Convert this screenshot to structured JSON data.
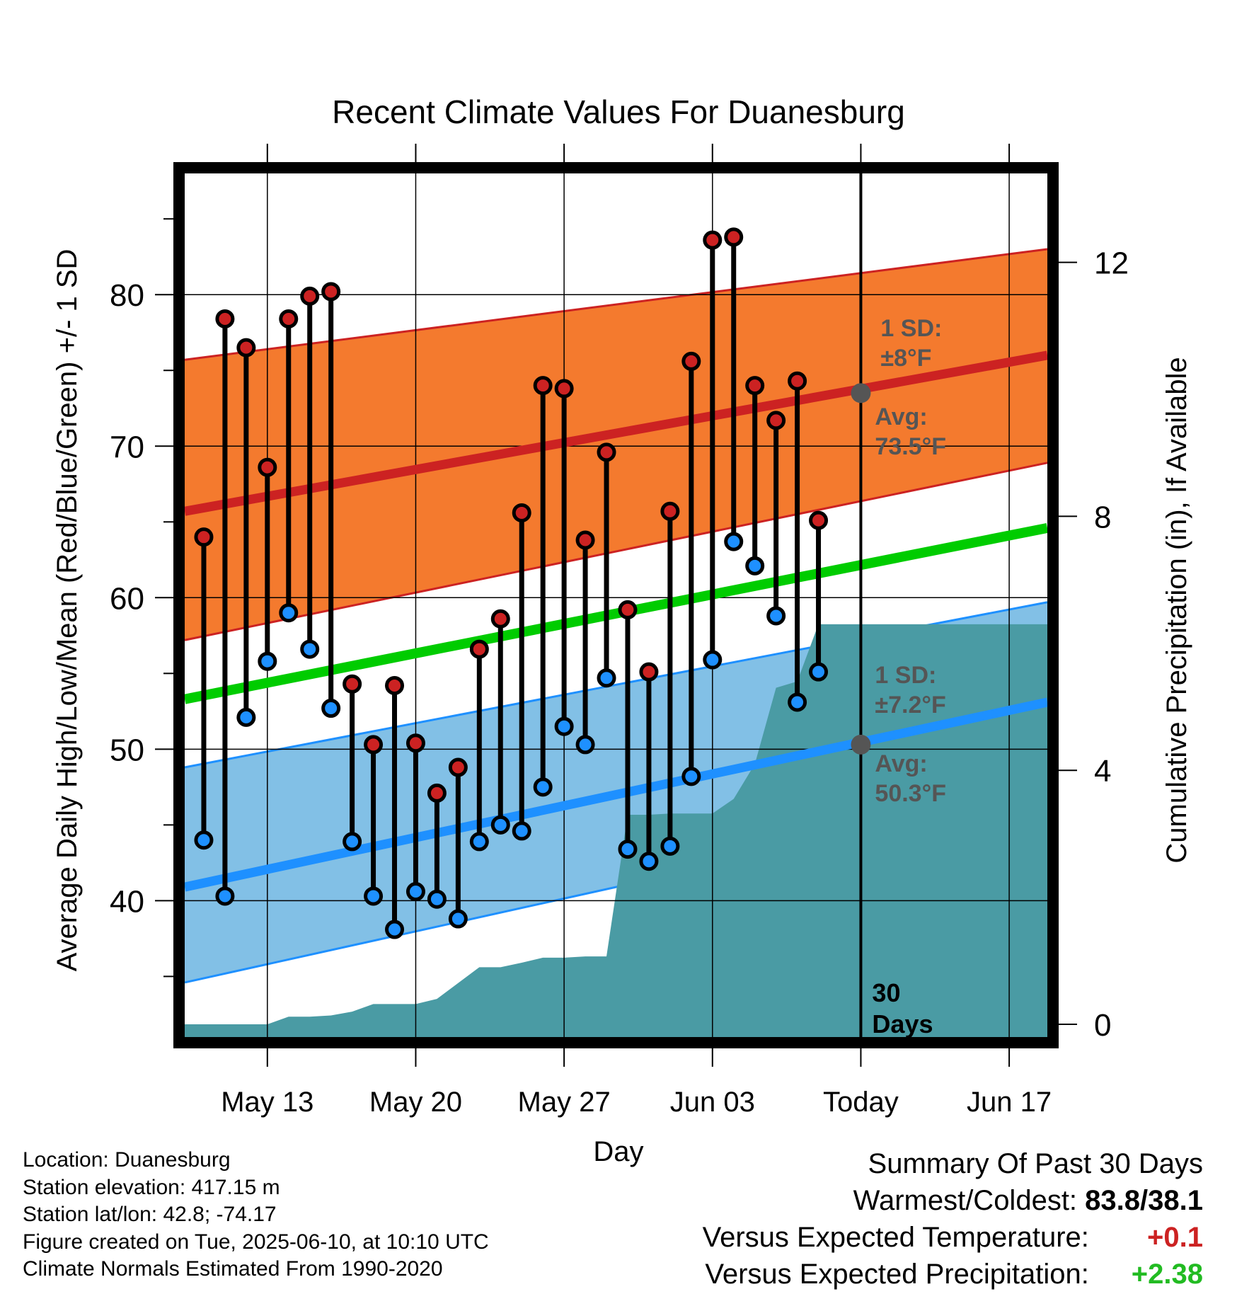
{
  "chart_data": {
    "type": "line",
    "title": "Recent Climate Values For Duanesburg",
    "xlabel": "Day",
    "ylabel_left": "Average Daily High/Low/Mean (Red/Blue/Green) +/- 1 SD",
    "ylabel_right": "Cumulative Precipitation (in), If Available",
    "x_ticks": [
      {
        "day": 13,
        "label": "May 13"
      },
      {
        "day": 20,
        "label": "May 20"
      },
      {
        "day": 27,
        "label": "May 27"
      },
      {
        "day": 34,
        "label": "Jun 03"
      },
      {
        "day": 41,
        "label": "Today"
      },
      {
        "day": 48,
        "label": "Jun 17"
      }
    ],
    "xlim": [
      9.1,
      49.8
    ],
    "ylim": [
      31,
      88
    ],
    "y_ticks": [
      40,
      50,
      60,
      70,
      80
    ],
    "y2lim": [
      -0.2,
      13.4
    ],
    "y2_ticks": [
      0,
      4,
      8,
      12
    ],
    "grid": true,
    "today_day": 41,
    "normals": {
      "x": [
        9.1,
        49.8
      ],
      "avg_high": [
        65.7,
        76.0
      ],
      "avg_high_upper": [
        75.7,
        83.0
      ],
      "avg_high_lower": [
        57.2,
        68.9
      ],
      "avg_mean": [
        53.3,
        64.6
      ],
      "avg_low": [
        40.9,
        53.1
      ],
      "avg_low_upper": [
        48.8,
        59.7
      ],
      "avg_low_lower": [
        34.6,
        47.2
      ]
    },
    "series": [
      {
        "name": "High",
        "color": "#cc2222",
        "x": [
          10,
          11,
          12,
          13,
          14,
          15,
          16,
          17,
          18,
          19,
          20,
          21,
          22,
          23,
          24,
          25,
          26,
          27,
          28,
          29,
          30,
          31,
          32,
          33,
          34,
          35,
          36,
          37,
          38,
          39,
          40
        ],
        "values": [
          64.0,
          78.4,
          76.5,
          68.6,
          78.4,
          79.9,
          80.2,
          54.3,
          50.3,
          54.2,
          50.4,
          47.1,
          48.8,
          56.6,
          58.6,
          65.6,
          74.0,
          73.8,
          63.8,
          69.6,
          59.2,
          55.1,
          65.7,
          75.6,
          83.6,
          83.8,
          74.0,
          71.7,
          74.3,
          65.1,
          null
        ]
      },
      {
        "name": "Low",
        "color": "#1e90ff",
        "x": [
          10,
          11,
          12,
          13,
          14,
          15,
          16,
          17,
          18,
          19,
          20,
          21,
          22,
          23,
          24,
          25,
          26,
          27,
          28,
          29,
          30,
          31,
          32,
          33,
          34,
          35,
          36,
          37,
          38,
          39,
          40
        ],
        "values": [
          44.0,
          40.3,
          52.1,
          55.8,
          59.0,
          56.6,
          52.7,
          43.9,
          40.3,
          38.1,
          40.6,
          40.1,
          38.8,
          43.9,
          45.0,
          44.6,
          47.5,
          51.5,
          50.3,
          54.7,
          43.4,
          42.6,
          43.6,
          48.2,
          55.9,
          63.7,
          62.1,
          58.8,
          53.1,
          55.1,
          null
        ]
      }
    ],
    "precipitation": {
      "x": [
        9.1,
        10,
        11,
        12,
        13,
        14,
        15,
        16,
        17,
        18,
        19,
        20,
        21,
        22,
        23,
        24,
        25,
        26,
        27,
        28,
        29,
        30,
        31,
        32,
        33,
        34,
        35,
        36,
        37,
        38,
        39,
        40,
        41,
        49.8
      ],
      "values": [
        0,
        0,
        0,
        0,
        0,
        0.12,
        0.12,
        0.14,
        0.2,
        0.32,
        0.32,
        0.32,
        0.4,
        0.65,
        0.9,
        0.9,
        0.97,
        1.05,
        1.05,
        1.07,
        1.07,
        3.3,
        3.3,
        3.32,
        3.32,
        3.32,
        3.55,
        4.1,
        5.3,
        5.4,
        6.3,
        6.3,
        6.3,
        6.3
      ],
      "color": "#4a9ba4"
    },
    "annotations": {
      "high_sd_label": "1 SD:",
      "high_sd_value": "±8°F",
      "high_avg_label": "Avg:",
      "high_avg_value": "73.5°F",
      "high_avg_today": 73.5,
      "low_sd_label": "1 SD:",
      "low_sd_value": "±7.2°F",
      "low_avg_label": "Avg:",
      "low_avg_value": "50.3°F",
      "low_avg_today": 50.3,
      "days_line1": "30",
      "days_line2": "Days"
    },
    "colors": {
      "high_band": "#f47a2e",
      "high_line": "#cc2222",
      "mean_line": "#00cc00",
      "low_band": "#82c0e6",
      "low_line": "#1e90ff",
      "annotation_text": "#555555"
    }
  },
  "footer": {
    "location": "Location: Duanesburg",
    "elevation": "Station elevation: 417.15 m",
    "latlon": "Station lat/lon: 42.8; -74.17",
    "created": "Figure created on Tue, 2025-06-10, at 10:10 UTC",
    "normals": "Climate Normals Estimated From 1990-2020"
  },
  "summary": {
    "title": "Summary Of Past 30 Days",
    "warmest_label": "Warmest/Coldest:",
    "warmest_value": "83.8/38.1",
    "temp_label": "Versus Expected Temperature:",
    "temp_value": "+0.1",
    "temp_color": "#cc2222",
    "precip_label": "Versus Expected Precipitation:",
    "precip_value": "+2.38",
    "precip_color": "#22bb22"
  }
}
